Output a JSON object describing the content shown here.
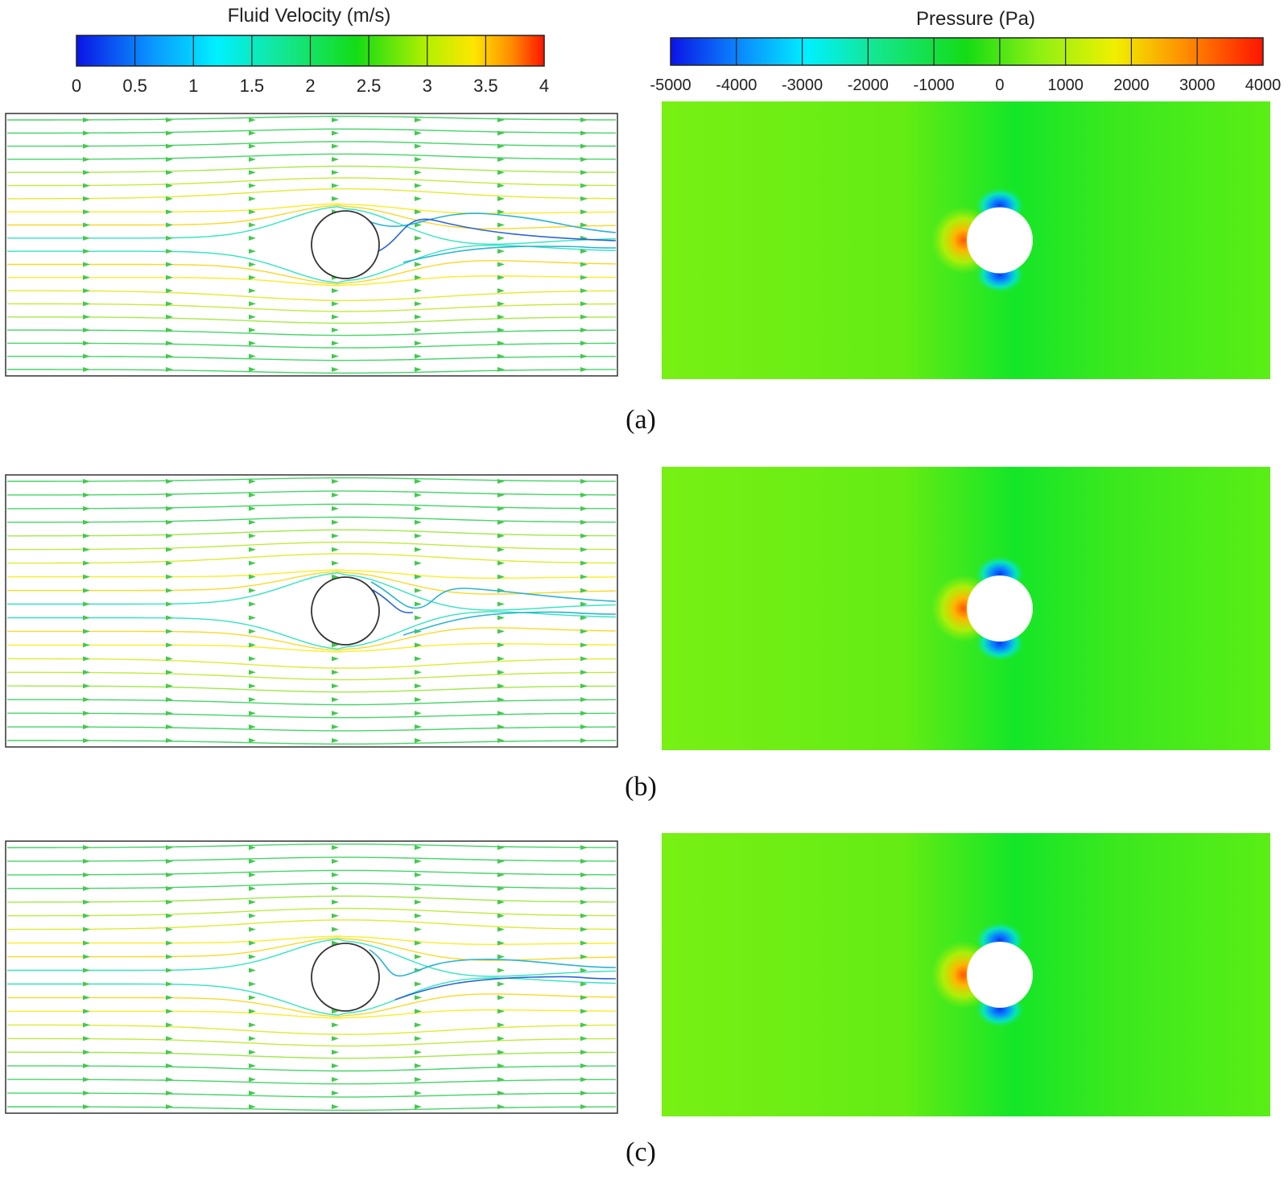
{
  "velocity_colorbar": {
    "title": "Fluid Velocity (m/s)",
    "ticks": [
      "0",
      "0.5",
      "1",
      "1.5",
      "2",
      "2.5",
      "3",
      "3.5",
      "4"
    ]
  },
  "pressure_colorbar": {
    "title": "Pressure (Pa)",
    "ticks": [
      "-5000",
      "-4000",
      "-3000",
      "-2000",
      "-1000",
      "0",
      "1000",
      "2000",
      "3000",
      "4000"
    ]
  },
  "panels": [
    {
      "label": "(a)",
      "wake": "left-vortex"
    },
    {
      "label": "(b)",
      "wake": "two-vortex"
    },
    {
      "label": "(c)",
      "wake": "upper-vortex"
    }
  ],
  "colors": {
    "blue": "#0a14e6",
    "cyan": "#00e6ff",
    "green": "#00dc28",
    "yellow": "#ffff00",
    "red": "#ff1400",
    "pressure_field": "#6ef014"
  }
}
